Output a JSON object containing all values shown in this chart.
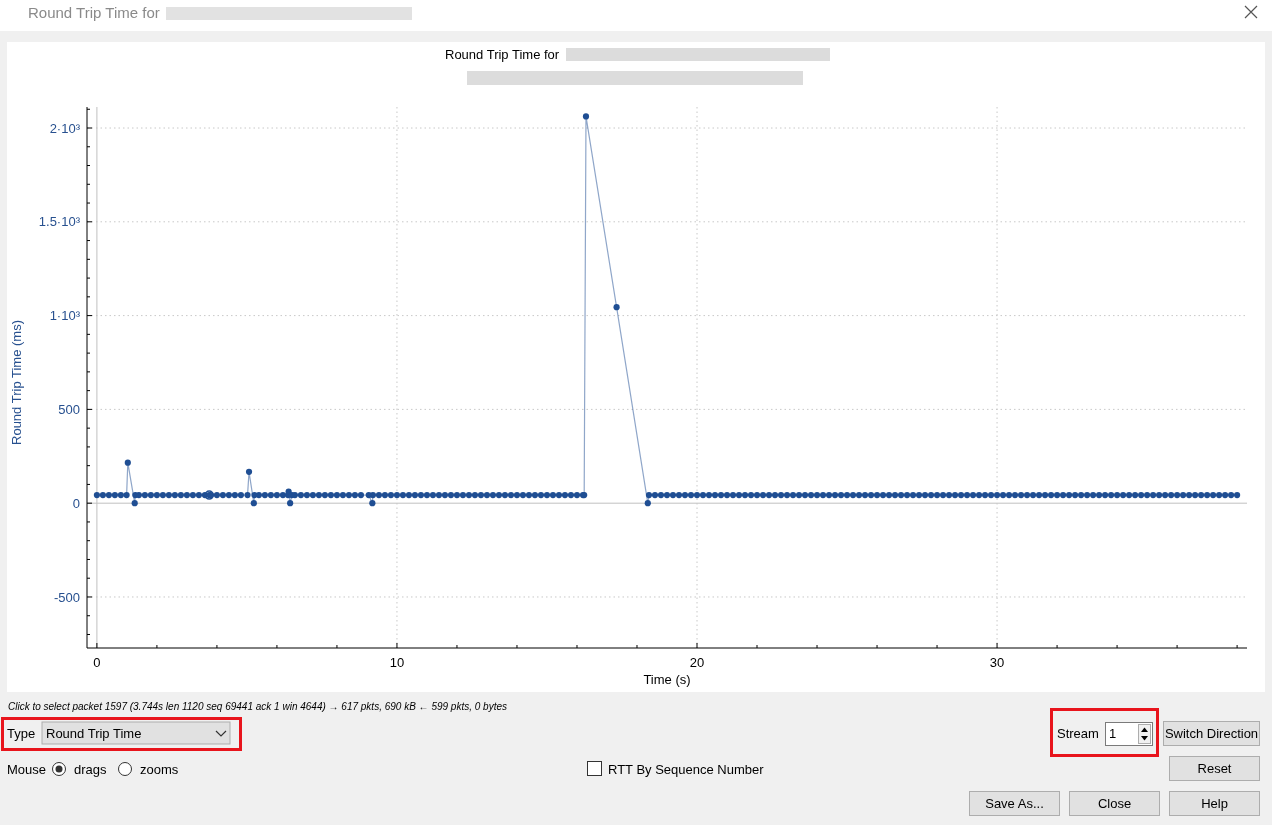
{
  "chart_data": {
    "type": "line",
    "title": "Round Trip Time for",
    "xlabel": "Time (s)",
    "ylabel": "Round Trip Time (ms)",
    "xlim": [
      -0.33,
      38.33
    ],
    "ylim": [
      -772,
      2112
    ],
    "xticks": [
      0,
      {
        "value": 2,
        "label": null
      },
      {
        "value": 4,
        "label": null
      },
      {
        "value": 6,
        "label": null
      },
      {
        "value": 8,
        "label": null
      },
      10,
      {
        "value": 12,
        "label": null
      },
      {
        "value": 14,
        "label": null
      },
      {
        "value": 16,
        "label": null
      },
      {
        "value": 18,
        "label": null
      },
      20,
      {
        "value": 22,
        "label": null
      },
      {
        "value": 24,
        "label": null
      },
      {
        "value": 26,
        "label": null
      },
      {
        "value": 28,
        "label": null
      },
      30,
      {
        "value": 32,
        "label": null
      },
      {
        "value": 34,
        "label": null
      },
      {
        "value": 36,
        "label": null
      },
      {
        "value": 38,
        "label": null
      }
    ],
    "yticks": [
      {
        "value": -700,
        "label": null
      },
      {
        "value": -600,
        "label": null
      },
      -500,
      {
        "value": -400,
        "label": null
      },
      {
        "value": -300,
        "label": null
      },
      {
        "value": -200,
        "label": null
      },
      {
        "value": -100,
        "label": null
      },
      0,
      {
        "value": 100,
        "label": null
      },
      {
        "value": 200,
        "label": null
      },
      {
        "value": 300,
        "label": null
      },
      {
        "value": 400,
        "label": null
      },
      500,
      {
        "value": 600,
        "label": null
      },
      {
        "value": 700,
        "label": null
      },
      {
        "value": 800,
        "label": null
      },
      {
        "value": 900,
        "label": null
      },
      {
        "value": 1000,
        "label": "1·10³"
      },
      {
        "value": 1100,
        "label": null
      },
      {
        "value": 1200,
        "label": null
      },
      {
        "value": 1300,
        "label": null
      },
      {
        "value": 1400,
        "label": null
      },
      {
        "value": 1500,
        "label": "1.5·10³"
      },
      {
        "value": 1600,
        "label": null
      },
      {
        "value": 1700,
        "label": null
      },
      {
        "value": 1800,
        "label": null
      },
      {
        "value": 1900,
        "label": null
      },
      {
        "value": 2000,
        "label": "2·10³"
      },
      {
        "value": 2100,
        "label": null
      }
    ],
    "grid": true,
    "marker": "circle",
    "line_style": "solid",
    "x": [
      0,
      0.2,
      0.4,
      0.6,
      0.8,
      0.99,
      1.03,
      1.26,
      1.28,
      1.4,
      1.6,
      1.8,
      2,
      2.2,
      2.4,
      2.6,
      2.8,
      3,
      3.2,
      3.4,
      3.6,
      3.744,
      3.8,
      4,
      4.2,
      4.4,
      4.6,
      4.8,
      5.02,
      5.07,
      5.23,
      5.25,
      5.4,
      5.6,
      5.8,
      6,
      6.2,
      6.37,
      6.39,
      6.44,
      6.5,
      6.6,
      6.8,
      7,
      7.2,
      7.4,
      7.6,
      7.8,
      8,
      8.2,
      8.4,
      8.6,
      8.8,
      9.06,
      9.18,
      9.2,
      9.4,
      9.6,
      9.8,
      10,
      10.2,
      10.4,
      10.6,
      10.8,
      11,
      11.2,
      11.4,
      11.6,
      11.8,
      12,
      12.2,
      12.4,
      12.6,
      12.8,
      13,
      13.2,
      13.4,
      13.6,
      13.8,
      14,
      14.2,
      14.4,
      14.6,
      14.8,
      15,
      15.2,
      15.4,
      15.6,
      15.8,
      16,
      16.2,
      16.24,
      16.3,
      17.32,
      18.36,
      18.4,
      18.6,
      18.8,
      19,
      19.2,
      19.4,
      19.6,
      19.8,
      20,
      20.2,
      20.4,
      20.6,
      20.8,
      21,
      21.2,
      21.4,
      21.6,
      21.8,
      22,
      22.2,
      22.4,
      22.6,
      22.8,
      23,
      23.2,
      23.4,
      23.6,
      23.8,
      24,
      24.2,
      24.4,
      24.6,
      24.8,
      25,
      25.2,
      25.4,
      25.6,
      25.8,
      26,
      26.2,
      26.4,
      26.6,
      26.8,
      27,
      27.2,
      27.4,
      27.6,
      27.8,
      28,
      28.2,
      28.4,
      28.6,
      28.8,
      29,
      29.2,
      29.4,
      29.6,
      29.8,
      30,
      30.2,
      30.4,
      30.6,
      30.8,
      31,
      31.2,
      31.4,
      31.6,
      31.8,
      32,
      32.2,
      32.4,
      32.6,
      32.8,
      33,
      33.2,
      33.4,
      33.6,
      33.8,
      34,
      34.2,
      34.4,
      34.6,
      34.8,
      35,
      35.2,
      35.4,
      35.6,
      35.8,
      36,
      36.2,
      36.4,
      36.6,
      36.8,
      37,
      37.2,
      37.4,
      37.6,
      37.8,
      38
    ],
    "series": [
      {
        "color": "#1f4e93",
        "values": [
          43,
          43,
          43,
          43,
          43,
          43,
          216,
          0,
          43,
          43,
          43,
          43,
          43,
          43,
          43,
          43,
          43,
          43,
          43,
          43,
          43,
          43,
          43,
          43,
          43,
          43,
          43,
          43,
          43,
          167,
          0,
          43,
          43,
          43,
          43,
          43,
          43,
          43,
          62,
          0,
          43,
          43,
          43,
          43,
          43,
          43,
          43,
          43,
          43,
          43,
          43,
          43,
          43,
          43,
          0,
          43,
          43,
          43,
          43,
          43,
          43,
          43,
          43,
          43,
          43,
          43,
          43,
          43,
          43,
          43,
          43,
          43,
          43,
          43,
          43,
          43,
          43,
          43,
          43,
          43,
          43,
          43,
          43,
          43,
          43,
          43,
          43,
          43,
          43,
          43,
          43,
          43,
          2062,
          1045,
          0,
          43,
          43,
          43,
          43,
          43,
          43,
          43,
          43,
          43,
          43,
          43,
          43,
          43,
          43,
          43,
          43,
          43,
          43,
          43,
          43,
          43,
          43,
          43,
          43,
          43,
          43,
          43,
          43,
          43,
          43,
          43,
          43,
          43,
          43,
          43,
          43,
          43,
          43,
          43,
          43,
          43,
          43,
          43,
          43,
          43,
          43,
          43,
          43,
          43,
          43,
          43,
          43,
          43,
          43,
          43,
          43,
          43,
          43,
          43,
          43,
          43,
          43,
          43,
          43,
          43,
          43,
          43,
          43,
          43,
          43,
          43,
          43,
          43,
          43,
          43,
          43,
          43,
          43,
          43,
          43,
          43,
          43,
          43,
          43,
          43,
          43,
          43,
          43,
          43,
          43,
          43,
          43,
          43,
          43,
          43,
          43,
          43,
          43,
          43
        ]
      },
      {
        "type": "scatter",
        "color": "#1f4e93",
        "x": [
          3.744
        ],
        "values": [
          43
        ]
      }
    ],
    "annotations": [
      "Click to select packet 1597 (3.744s len 1120 seq 69441 ack 1 win 4644) → 617 pkts, 690 kB ← 599 pkts, 0 bytes",
      "Type",
      "Round Trip Time",
      "Mouse",
      "drags",
      "zooms",
      "RTT By Sequence Number",
      "Stream",
      "1",
      "Switch Direction",
      "Reset",
      "Save As...",
      "Close",
      "Help"
    ]
  }
}
